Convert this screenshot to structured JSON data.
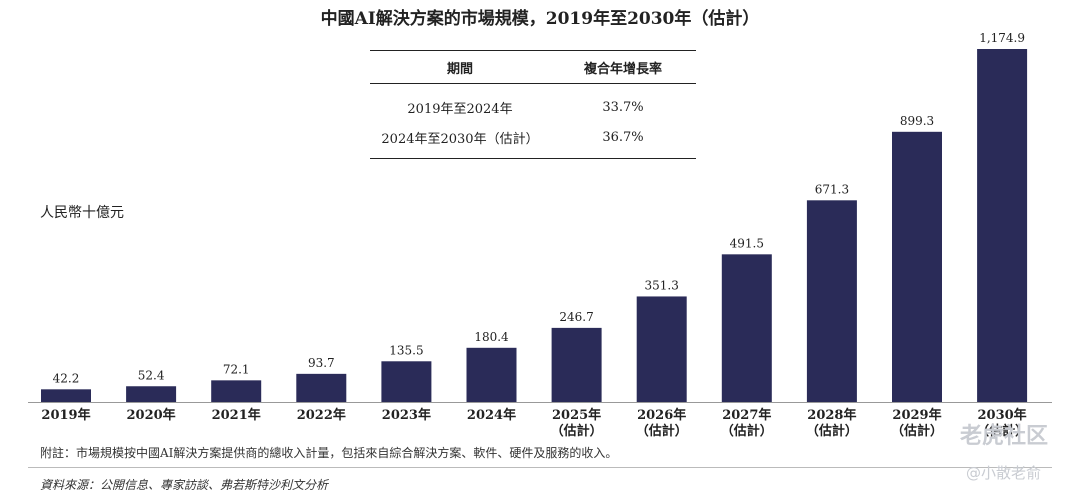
{
  "chart_data": {
    "type": "bar",
    "title": "中國AI解決方案的市場規模，2019年至2030年（估計）",
    "ylabel": "人民幣十億元",
    "categories": [
      [
        "2019年"
      ],
      [
        "2020年"
      ],
      [
        "2021年"
      ],
      [
        "2022年"
      ],
      [
        "2023年"
      ],
      [
        "2024年"
      ],
      [
        "2025年",
        "（估計）"
      ],
      [
        "2026年",
        "（估計）"
      ],
      [
        "2027年",
        "（估計）"
      ],
      [
        "2028年",
        "（估計）"
      ],
      [
        "2029年",
        "（估計）"
      ],
      [
        "2030年",
        "（估計）"
      ]
    ],
    "values": [
      42.2,
      52.4,
      72.1,
      93.7,
      135.5,
      180.4,
      246.7,
      351.3,
      491.5,
      671.3,
      899.3,
      1174.9
    ],
    "value_labels": [
      "42.2",
      "52.4",
      "72.1",
      "93.7",
      "135.5",
      "180.4",
      "246.7",
      "351.3",
      "491.5",
      "671.3",
      "899.3",
      "1,174.9"
    ],
    "ylim": [
      0,
      1174.9
    ],
    "grid": false,
    "bar_color": "#2a2b58"
  },
  "cagr_table": {
    "headers": [
      "期間",
      "複合年增長率"
    ],
    "rows": [
      [
        "2019年至2024年",
        "33.7%"
      ],
      [
        "2024年至2030年（估計）",
        "36.7%"
      ]
    ]
  },
  "footnote": "附註：市場規模按中國AI解決方案提供商的總收入計量，包括來自綜合解決方案、軟件、硬件及服務的收入。",
  "source": "資料來源：公開信息、專家訪談、弗若斯特沙利文分析",
  "watermark": {
    "line1": "老虎社区",
    "line2": "@小散老俞"
  }
}
